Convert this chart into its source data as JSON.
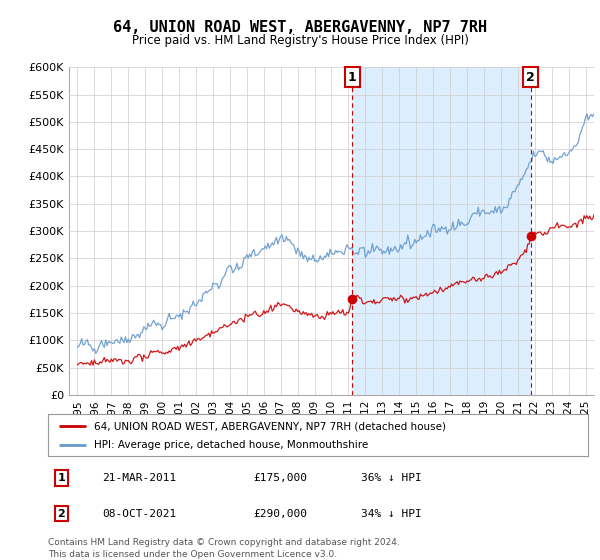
{
  "title": "64, UNION ROAD WEST, ABERGAVENNY, NP7 7RH",
  "subtitle": "Price paid vs. HM Land Registry's House Price Index (HPI)",
  "red_label": "64, UNION ROAD WEST, ABERGAVENNY, NP7 7RH (detached house)",
  "blue_label": "HPI: Average price, detached house, Monmouthshire",
  "footnote": "Contains HM Land Registry data © Crown copyright and database right 2024.\nThis data is licensed under the Open Government Licence v3.0.",
  "sale1_date": "21-MAR-2011",
  "sale1_price": 175000,
  "sale1_label": "36% ↓ HPI",
  "sale2_date": "08-OCT-2021",
  "sale2_price": 290000,
  "sale2_label": "34% ↓ HPI",
  "sale1_x": 2011.22,
  "sale2_x": 2021.77,
  "ylim": [
    0,
    600000
  ],
  "xlim": [
    1994.5,
    2025.5
  ],
  "yticks": [
    0,
    50000,
    100000,
    150000,
    200000,
    250000,
    300000,
    350000,
    400000,
    450000,
    500000,
    550000,
    600000
  ],
  "ytick_labels": [
    "£0",
    "£50K",
    "£100K",
    "£150K",
    "£200K",
    "£250K",
    "£300K",
    "£350K",
    "£400K",
    "£450K",
    "£500K",
    "£550K",
    "£600K"
  ],
  "xticks": [
    1995,
    1996,
    1997,
    1998,
    1999,
    2000,
    2001,
    2002,
    2003,
    2004,
    2005,
    2006,
    2007,
    2008,
    2009,
    2010,
    2011,
    2012,
    2013,
    2014,
    2015,
    2016,
    2017,
    2018,
    2019,
    2020,
    2021,
    2022,
    2023,
    2024,
    2025
  ],
  "red_color": "#cc0000",
  "blue_color": "#6699cc",
  "blue_fill_color": "#ddeeff",
  "dashed_color": "#cc0000",
  "bg_color": "#ffffff",
  "grid_color": "#cccccc"
}
